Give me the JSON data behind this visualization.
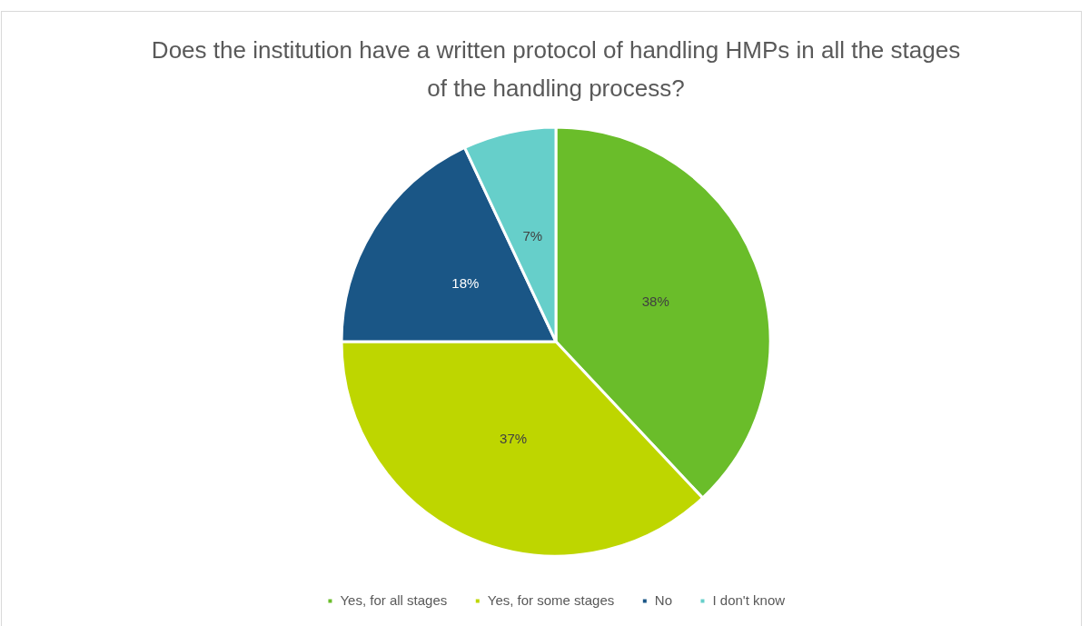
{
  "chart_data": {
    "type": "pie",
    "title": "Does the institution have a written protocol of handling HMPs in all the stages of the handling process?",
    "categories": [
      "Yes, for all stages",
      "Yes, for some stages",
      "No",
      "I don't know"
    ],
    "values": [
      38,
      37,
      18,
      7
    ],
    "colors": [
      "#6abd2a",
      "#bed600",
      "#1a5686",
      "#66cfca"
    ],
    "value_labels": [
      "38%",
      "37%",
      "18%",
      "7%"
    ],
    "legend": "bottom"
  }
}
